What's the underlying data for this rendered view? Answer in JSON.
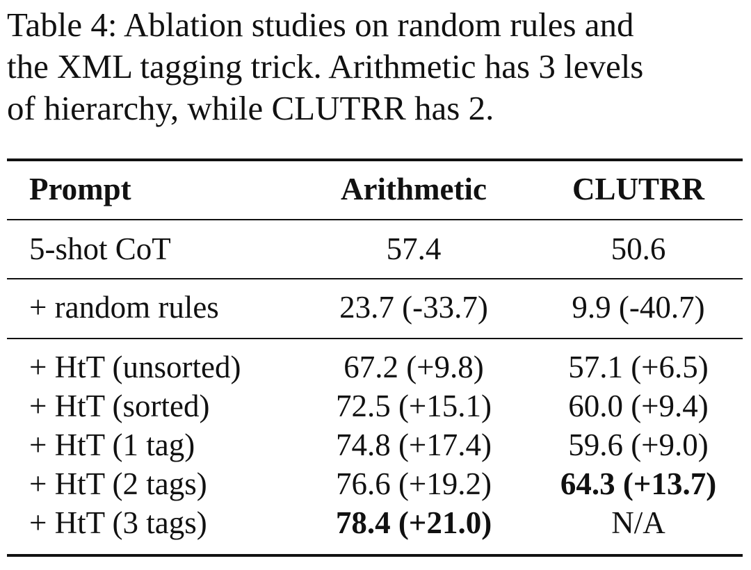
{
  "caption": {
    "lines": [
      "Table 4:  Ablation studies on random rules and",
      "the XML tagging trick. Arithmetic has 3 levels",
      "of hierarchy, while CLUTRR has 2."
    ]
  },
  "table": {
    "headers": [
      "Prompt",
      "Arithmetic",
      "CLUTRR"
    ],
    "rows": [
      {
        "prompt": "5-shot CoT",
        "arithmetic": "57.4",
        "clutrr": "50.6"
      },
      {
        "prompt": "+ random rules",
        "arithmetic": "23.7 (-33.7)",
        "clutrr": "9.9 (-40.7)"
      },
      {
        "prompt": "+ HtT (unsorted)",
        "arithmetic": "67.2 (+9.8)",
        "clutrr": "57.1 (+6.5)"
      },
      {
        "prompt": "+ HtT (sorted)",
        "arithmetic": "72.5 (+15.1)",
        "clutrr": "60.0 (+9.4)"
      },
      {
        "prompt": "+ HtT (1 tag)",
        "arithmetic": "74.8 (+17.4)",
        "clutrr": "59.6 (+9.0)"
      },
      {
        "prompt": "+ HtT (2 tags)",
        "arithmetic": "76.6 (+19.2)",
        "clutrr": "64.3 (+13.7)"
      },
      {
        "prompt": "+ HtT (3 tags)",
        "arithmetic": "78.4 (+21.0)",
        "clutrr": "N/A"
      }
    ]
  }
}
